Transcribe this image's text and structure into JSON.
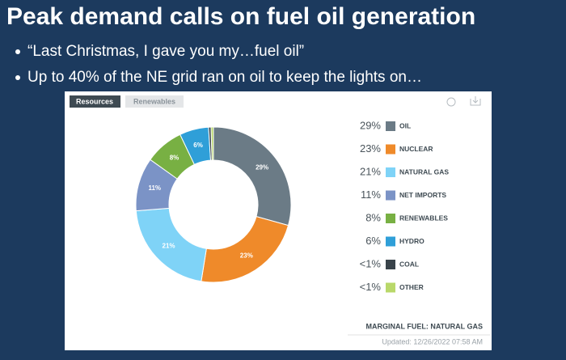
{
  "slide": {
    "title": "Peak demand calls on fuel oil generation",
    "bullets": [
      "“Last Christmas, I gave you my…fuel oil”",
      "Up to 40% of the NE grid ran on oil to keep the lights on…"
    ]
  },
  "widget": {
    "tabs": [
      "Resources",
      "Renewables"
    ],
    "footer": "MARGINAL FUEL: NATURAL GAS",
    "updated": "Updated: 12/26/2022 07:58 AM"
  },
  "chart_data": {
    "type": "donut",
    "categories": [
      "OIL",
      "NUCLEAR",
      "NATURAL GAS",
      "NET IMPORTS",
      "RENEWABLES",
      "HYDRO",
      "COAL",
      "OTHER"
    ],
    "values": [
      29,
      23,
      21,
      11,
      8,
      6,
      0.5,
      0.5
    ],
    "value_labels": [
      "29%",
      "23%",
      "21%",
      "11%",
      "8%",
      "6%",
      "<1%",
      "<1%"
    ],
    "colors": [
      "#6b7b86",
      "#ef8a2a",
      "#7fd3f7",
      "#7b93c6",
      "#78b043",
      "#2f9fd8",
      "#39434a",
      "#b9d86a"
    ]
  }
}
